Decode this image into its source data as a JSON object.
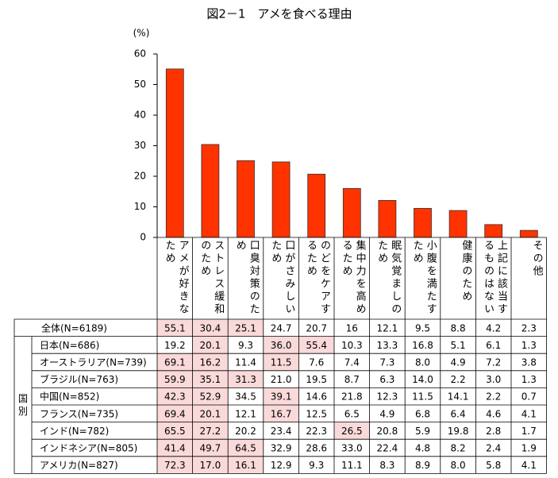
{
  "chart_data": {
    "type": "bar",
    "title": "図2－1　アメを食べる理由",
    "ylabel": "(%)",
    "categories": [
      "アメが好きなため",
      "ストレス緩和のため",
      "口臭対策のため",
      "口がさみしいため",
      "のどをケアするため",
      "集中力を高めるため",
      "眠気覚ましのため",
      "小腹を満たすため",
      "健康のため",
      "上記に該当するものはない",
      "その他"
    ],
    "values": [
      55.1,
      30.4,
      25.1,
      24.7,
      20.7,
      16.0,
      12.1,
      9.5,
      8.8,
      4.2,
      2.3
    ],
    "color": "#ff3300",
    "ylim": [
      0,
      60
    ],
    "yticks": [
      0,
      10,
      20,
      30,
      40,
      50,
      60
    ],
    "grid": false
  },
  "table": {
    "total_label": "全体(N=6189)",
    "group_label": "国別",
    "highlight_top": 3,
    "highlight_color": "#f9d9d9",
    "rows": [
      {
        "label": "日本(N=686)",
        "values": [
          "19.2",
          "20.1",
          "9.3",
          "36.0",
          "55.4",
          "10.3",
          "13.3",
          "16.8",
          "5.1",
          "6.1",
          "1.3"
        ]
      },
      {
        "label": "オーストラリア(N=739)",
        "values": [
          "69.1",
          "16.2",
          "11.4",
          "11.5",
          "7.6",
          "7.4",
          "7.3",
          "8.0",
          "4.9",
          "7.2",
          "3.8"
        ]
      },
      {
        "label": "ブラジル(N=763)",
        "values": [
          "59.9",
          "35.1",
          "31.3",
          "21.0",
          "19.5",
          "8.7",
          "6.3",
          "14.0",
          "2.2",
          "3.0",
          "1.3"
        ]
      },
      {
        "label": "中国(N=852)",
        "values": [
          "42.3",
          "52.9",
          "34.5",
          "39.1",
          "14.6",
          "21.8",
          "12.3",
          "11.5",
          "14.1",
          "2.2",
          "0.7"
        ]
      },
      {
        "label": "フランス(N=735)",
        "values": [
          "69.4",
          "20.1",
          "12.1",
          "16.7",
          "12.5",
          "6.5",
          "4.9",
          "6.8",
          "6.4",
          "4.6",
          "4.1"
        ]
      },
      {
        "label": "インド(N=782)",
        "values": [
          "65.5",
          "27.2",
          "20.2",
          "23.4",
          "22.3",
          "26.5",
          "20.8",
          "5.9",
          "19.8",
          "2.8",
          "1.7"
        ]
      },
      {
        "label": "インドネシア(N=805)",
        "values": [
          "41.4",
          "49.7",
          "64.5",
          "32.9",
          "28.6",
          "33.0",
          "22.4",
          "4.8",
          "8.2",
          "2.4",
          "1.9"
        ]
      },
      {
        "label": "アメリカ(N=827)",
        "values": [
          "72.3",
          "17.0",
          "16.1",
          "12.9",
          "9.3",
          "11.1",
          "8.3",
          "8.9",
          "8.0",
          "5.8",
          "4.1"
        ]
      }
    ]
  }
}
